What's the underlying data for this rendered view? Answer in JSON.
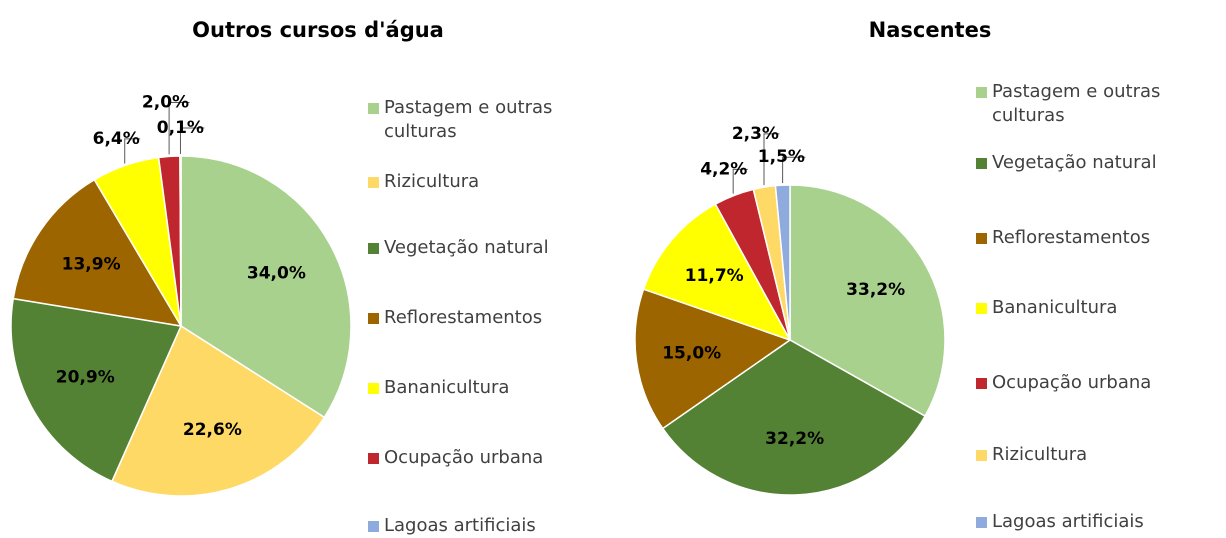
{
  "chart_data": [
    {
      "type": "pie",
      "title": "Outros cursos d'água",
      "categories": [
        "Pastagem e outras culturas",
        "Rizicultura",
        "Vegetação natural",
        "Reflorestamentos",
        "Bananicultura",
        "Ocupação urbana",
        "Lagoas artificiais"
      ],
      "values": [
        34.0,
        22.6,
        20.9,
        13.9,
        6.4,
        2.0,
        0.1
      ],
      "value_labels": [
        "34,0%",
        "22,6%",
        "20,9%",
        "13,9%",
        "6,4%",
        "2,0%",
        "0,1%"
      ],
      "colors": [
        "#a9d18e",
        "#ffd966",
        "#548235",
        "#9c6500",
        "#ffff00",
        "#c0262d",
        "#8faadc"
      ]
    },
    {
      "type": "pie",
      "title": "Nascentes",
      "categories": [
        "Pastagem e outras culturas",
        "Vegetação natural",
        "Reflorestamentos",
        "Bananicultura",
        "Ocupação urbana",
        "Rizicultura",
        "Lagoas artificiais"
      ],
      "values": [
        33.2,
        32.2,
        15.0,
        11.7,
        4.2,
        2.3,
        1.5
      ],
      "value_labels": [
        "33,2%",
        "32,2%",
        "15,0%",
        "11,7%",
        "4,2%",
        "2,3%",
        "1,5%"
      ],
      "colors": [
        "#a9d18e",
        "#548235",
        "#9c6500",
        "#ffff00",
        "#c0262d",
        "#ffd966",
        "#8faadc"
      ]
    }
  ]
}
